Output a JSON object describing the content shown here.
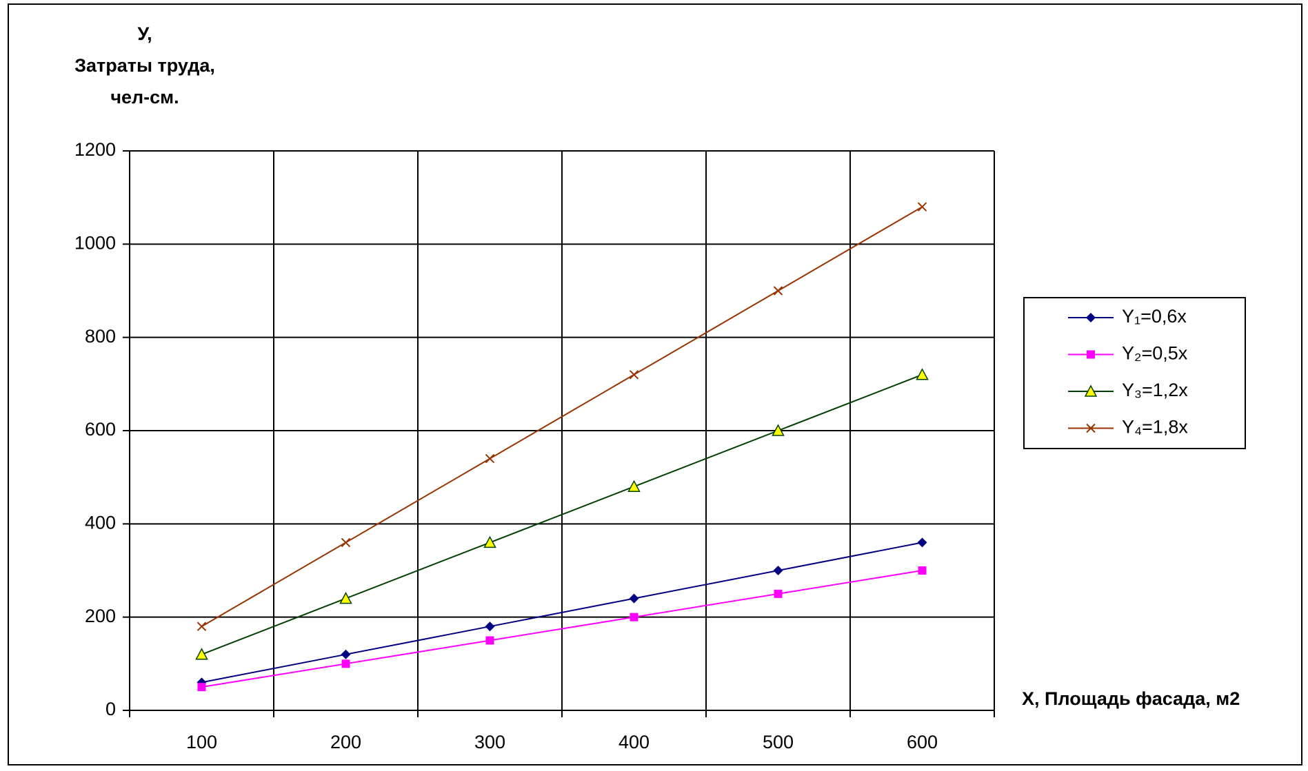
{
  "chart_data": {
    "type": "line",
    "y_label": [
      "У,",
      "Затраты труда,",
      "чел-см."
    ],
    "x_label": "Х, Площадь фасада, м2",
    "categories": [
      "100",
      "200",
      "300",
      "400",
      "500",
      "600"
    ],
    "series": [
      {
        "name": "Y₁=0,6x",
        "color": "#000080",
        "marker": "diamond",
        "values": [
          60,
          120,
          180,
          240,
          300,
          360
        ]
      },
      {
        "name": "Y₂=0,5x",
        "color": "#ff00ff",
        "marker": "square",
        "values": [
          50,
          100,
          150,
          200,
          250,
          300
        ]
      },
      {
        "name": "Y₃=1,2x",
        "color": "#004000",
        "marker": "triangle",
        "values": [
          120,
          240,
          360,
          480,
          600,
          720
        ]
      },
      {
        "name": "Y₄=1,8x",
        "color": "#993300",
        "marker": "x",
        "values": [
          180,
          360,
          540,
          720,
          900,
          1080
        ]
      }
    ],
    "ylim": [
      0,
      1200
    ],
    "yticks": [
      0,
      200,
      400,
      600,
      800,
      1000,
      1200
    ],
    "grid": true,
    "legend": "right"
  }
}
